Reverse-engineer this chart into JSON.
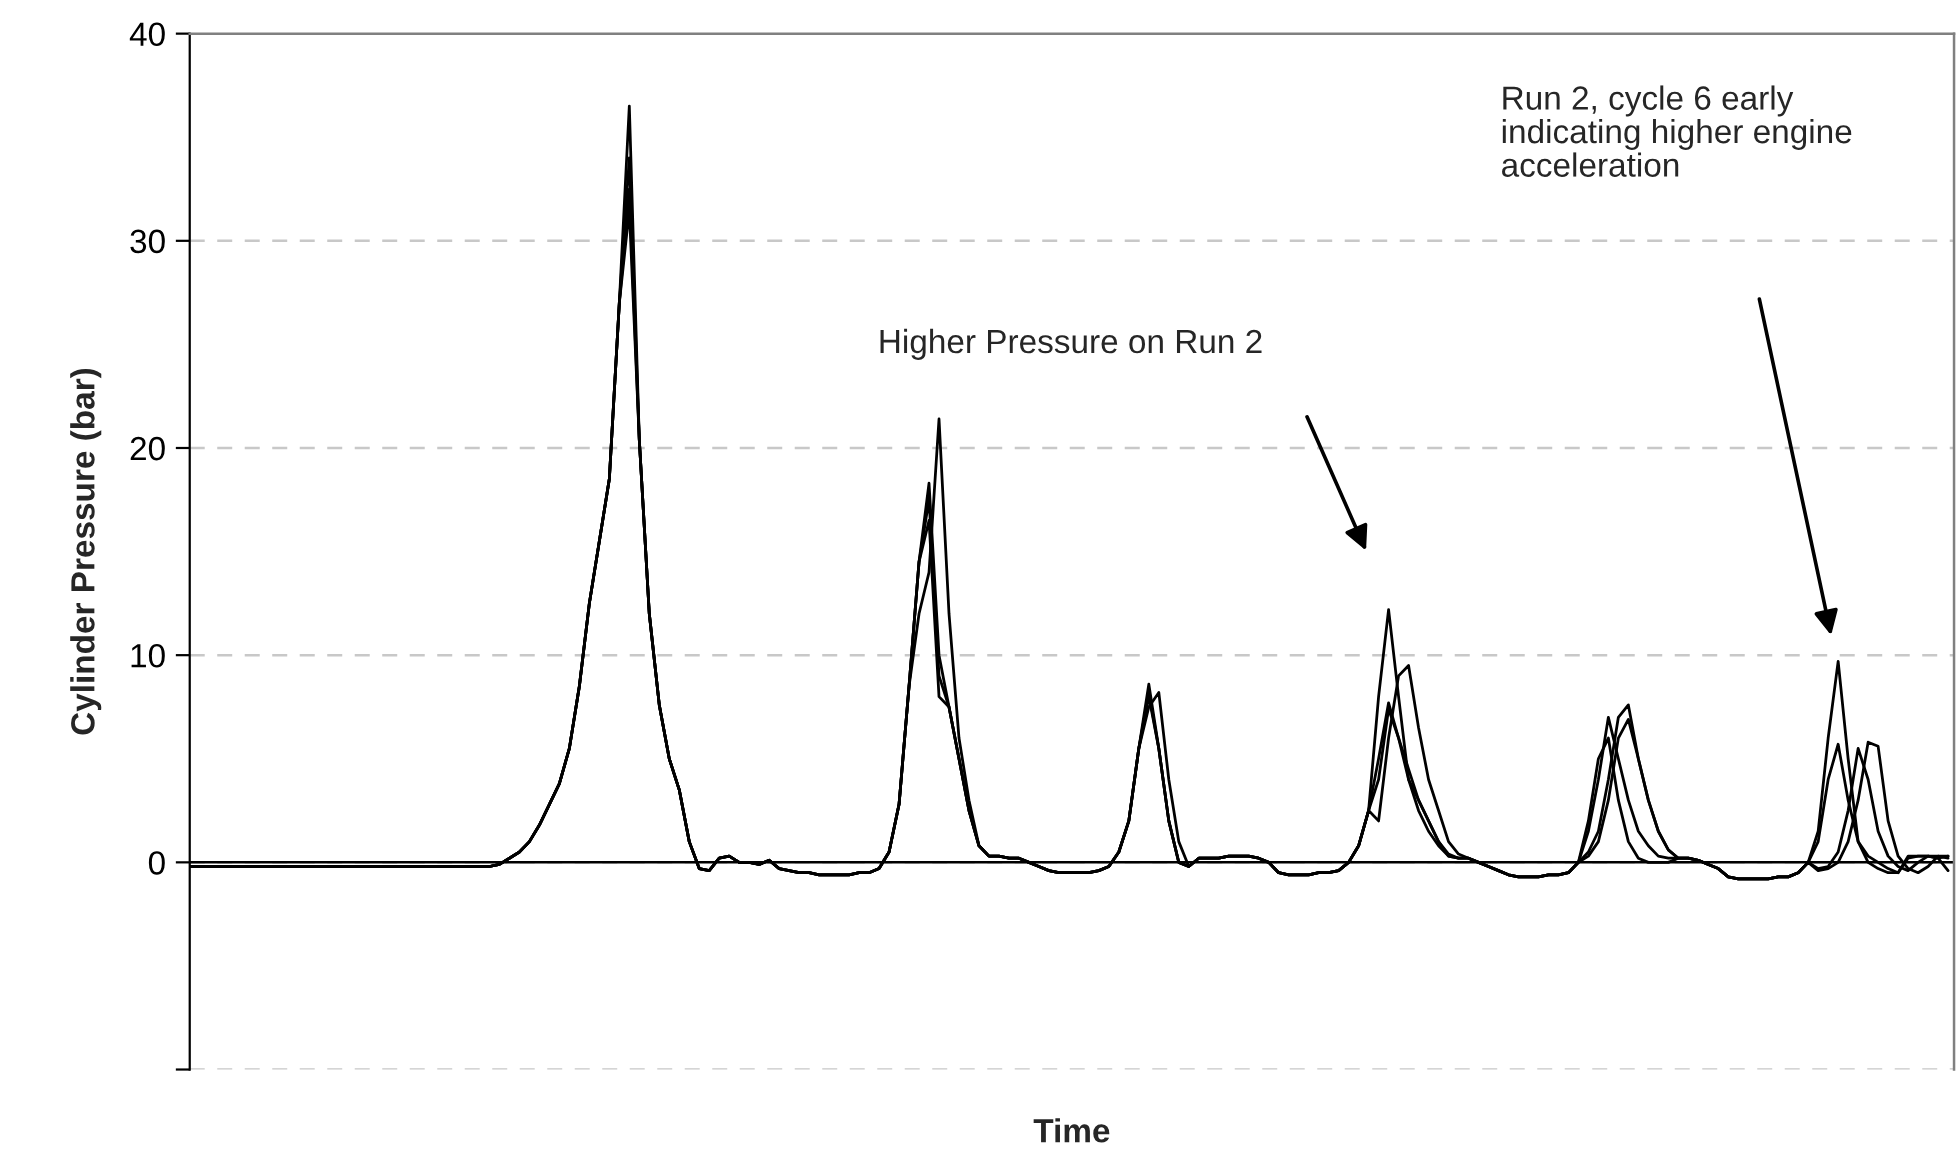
{
  "chart_data": {
    "type": "line",
    "xlabel": "Time",
    "ylabel": "Cylinder Pressure (bar)",
    "categories": [
      null,
      null,
      null,
      null,
      null,
      null,
      null,
      null,
      null,
      null,
      null,
      null,
      null,
      null,
      null,
      null,
      null,
      null,
      null,
      null,
      null,
      null,
      null,
      null,
      null,
      null,
      null,
      null,
      null,
      null,
      null,
      null,
      null,
      null,
      null,
      null,
      null,
      null,
      null,
      null,
      null,
      null,
      null,
      null,
      null,
      null,
      null,
      null,
      null,
      null,
      null,
      null,
      null,
      null,
      null,
      null,
      null,
      null,
      null,
      null,
      null,
      null,
      null,
      null,
      null,
      null,
      null,
      null,
      null,
      null,
      null,
      null,
      null,
      null,
      null,
      null,
      null,
      null,
      null,
      null,
      null,
      null,
      null,
      null,
      null,
      null,
      null,
      null,
      null,
      null,
      null,
      null,
      null,
      null,
      null,
      null,
      null,
      null,
      null,
      null,
      null,
      null,
      null,
      null,
      null,
      null,
      null,
      null,
      null,
      null,
      null,
      null,
      null,
      null,
      null,
      null,
      null,
      null,
      null,
      null,
      null,
      null,
      null,
      null,
      null,
      null,
      null,
      null,
      null,
      null,
      null,
      null,
      null,
      null,
      null,
      null,
      null,
      null,
      null,
      null,
      null,
      null,
      null,
      null,
      null,
      null,
      null,
      null,
      null,
      null,
      null,
      null,
      null,
      null,
      null,
      null,
      null,
      null,
      null,
      null,
      null,
      null,
      null,
      null,
      null,
      null,
      null,
      null,
      null,
      null,
      null,
      null,
      null,
      null,
      null,
      null,
      null
    ],
    "series": [
      {
        "color": "#000000",
        "values": [
          -0.2,
          -0.2,
          -0.2,
          -0.2,
          -0.2,
          -0.2,
          -0.2,
          -0.2,
          -0.2,
          -0.2,
          -0.2,
          -0.2,
          -0.2,
          -0.2,
          -0.2,
          -0.2,
          -0.2,
          -0.2,
          -0.2,
          -0.2,
          -0.2,
          -0.2,
          -0.2,
          -0.2,
          -0.2,
          -0.2,
          -0.2,
          -0.2,
          -0.2,
          -0.2,
          -0.2,
          -0.1,
          0.2,
          0.5,
          1.0,
          1.8,
          2.8,
          3.8,
          5.5,
          8.5,
          12.5,
          15.5,
          18.5,
          27,
          36.5,
          20.4,
          12,
          7.6,
          5.0,
          3.5,
          1.0,
          -0.3,
          -0.4,
          0.2,
          0.3,
          0.0,
          0.0,
          -0.1,
          0.1,
          -0.3,
          -0.4,
          -0.5,
          -0.5,
          -0.6,
          -0.6,
          -0.6,
          -0.6,
          -0.5,
          -0.5,
          -0.3,
          0.5,
          2.8,
          8.5,
          14.5,
          18.3,
          10,
          7.5,
          5.0,
          2.5,
          0.8,
          0.3,
          0.3,
          0.2,
          0.2,
          0.0,
          -0.2,
          -0.4,
          -0.5,
          -0.5,
          -0.5,
          -0.5,
          -0.4,
          -0.2,
          0.5,
          2.0,
          5.5,
          8.6,
          5.5,
          2.0,
          0.0,
          -0.2,
          0.2,
          0.2,
          0.2,
          0.3,
          0.3,
          0.3,
          0.2,
          0.0,
          -0.5,
          -0.6,
          -0.6,
          -0.6,
          -0.5,
          -0.5,
          -0.4,
          0.0,
          0.8,
          2.5,
          5,
          7.7,
          6,
          4,
          3,
          2,
          1,
          0.3,
          0.2,
          0.2,
          0.0,
          -0.2,
          -0.4,
          -0.6,
          -0.7,
          -0.7,
          -0.7,
          -0.6,
          -0.6,
          -0.5,
          0.0,
          2,
          5.0,
          6.0,
          3,
          1,
          0.2,
          0,
          0,
          0,
          0.2,
          0.2,
          0.1,
          -0.1,
          -0.3,
          -0.7,
          -0.8,
          -0.8,
          -0.8,
          -0.8,
          -0.7,
          -0.7,
          -0.5,
          0.0,
          1.0,
          4,
          5.7,
          3,
          1,
          0.3,
          0,
          -0.3,
          -0.5,
          0.3,
          0.3,
          0.3,
          0.2,
          0.3
        ]
      },
      {
        "color": "#000000",
        "values": [
          -0.2,
          -0.2,
          -0.2,
          -0.2,
          -0.2,
          -0.2,
          -0.2,
          -0.2,
          -0.2,
          -0.2,
          -0.2,
          -0.2,
          -0.2,
          -0.2,
          -0.2,
          -0.2,
          -0.2,
          -0.2,
          -0.2,
          -0.2,
          -0.2,
          -0.2,
          -0.2,
          -0.2,
          -0.2,
          -0.2,
          -0.2,
          -0.2,
          -0.2,
          -0.2,
          -0.2,
          -0.1,
          0.2,
          0.5,
          1.0,
          1.8,
          2.8,
          3.8,
          5.5,
          8.5,
          12.5,
          15.5,
          18.5,
          27,
          34,
          20.4,
          12,
          7.6,
          5.0,
          3.5,
          1.0,
          -0.3,
          -0.4,
          0.2,
          0.3,
          0.0,
          0.0,
          -0.1,
          0.1,
          -0.3,
          -0.4,
          -0.5,
          -0.5,
          -0.6,
          -0.6,
          -0.6,
          -0.6,
          -0.5,
          -0.5,
          -0.3,
          0.5,
          2.8,
          8.5,
          14.5,
          17.5,
          9,
          7.5,
          5,
          2.5,
          0.8,
          0.3,
          0.3,
          0.2,
          0.2,
          0.0,
          -0.2,
          -0.4,
          -0.5,
          -0.5,
          -0.5,
          -0.5,
          -0.4,
          -0.2,
          0.5,
          2.0,
          5.5,
          8.2,
          5.5,
          2.0,
          0.0,
          -0.2,
          0.2,
          0.2,
          0.2,
          0.3,
          0.3,
          0.3,
          0.2,
          0.0,
          -0.5,
          -0.6,
          -0.6,
          -0.6,
          -0.5,
          -0.5,
          -0.4,
          0.0,
          0.8,
          2.5,
          4,
          7.4,
          6,
          4.5,
          3,
          2,
          1,
          0.4,
          0.2,
          0.2,
          0.0,
          -0.2,
          -0.4,
          -0.6,
          -0.7,
          -0.7,
          -0.7,
          -0.6,
          -0.6,
          -0.5,
          0.0,
          1.5,
          4.0,
          7.0,
          5,
          3,
          1.5,
          0.8,
          0.3,
          0.2,
          0.2,
          0.2,
          0.1,
          -0.1,
          -0.3,
          -0.7,
          -0.8,
          -0.8,
          -0.8,
          -0.8,
          -0.7,
          -0.7,
          -0.5,
          0.0,
          -0.3,
          -0.2,
          0.5,
          2.5,
          5.5,
          4,
          1.5,
          0.3,
          -0.2,
          -0.4,
          0,
          0.3,
          0.3,
          0.2
        ]
      },
      {
        "color": "#000000",
        "values": [
          -0.2,
          -0.2,
          -0.2,
          -0.2,
          -0.2,
          -0.2,
          -0.2,
          -0.2,
          -0.2,
          -0.2,
          -0.2,
          -0.2,
          -0.2,
          -0.2,
          -0.2,
          -0.2,
          -0.2,
          -0.2,
          -0.2,
          -0.2,
          -0.2,
          -0.2,
          -0.2,
          -0.2,
          -0.2,
          -0.2,
          -0.2,
          -0.2,
          -0.2,
          -0.2,
          -0.2,
          -0.1,
          0.2,
          0.5,
          1.0,
          1.8,
          2.8,
          3.8,
          5.5,
          8.5,
          12.5,
          15.5,
          18.5,
          27,
          32.5,
          20.4,
          12,
          7.6,
          5.0,
          3.5,
          1.0,
          -0.3,
          -0.4,
          0.2,
          0.3,
          0.0,
          0.0,
          -0.1,
          0.1,
          -0.3,
          -0.4,
          -0.5,
          -0.5,
          -0.6,
          -0.6,
          -0.6,
          -0.6,
          -0.5,
          -0.5,
          -0.3,
          0.5,
          2.8,
          8.5,
          14.5,
          16.5,
          8,
          7.5,
          5,
          2.5,
          0.8,
          0.3,
          0.3,
          0.2,
          0.2,
          0.0,
          -0.2,
          -0.4,
          -0.5,
          -0.5,
          -0.5,
          -0.5,
          -0.4,
          -0.2,
          0.5,
          2.0,
          5.5,
          7.5,
          8.2,
          4,
          1,
          -0.2,
          0.2,
          0.2,
          0.2,
          0.3,
          0.3,
          0.3,
          0.2,
          0.0,
          -0.5,
          -0.6,
          -0.6,
          -0.6,
          -0.5,
          -0.5,
          -0.4,
          0.0,
          0.8,
          2.5,
          2,
          6,
          9,
          9.5,
          6.5,
          4,
          2.5,
          1,
          0.4,
          0.2,
          0.0,
          -0.2,
          -0.4,
          -0.6,
          -0.7,
          -0.7,
          -0.7,
          -0.6,
          -0.6,
          -0.5,
          0.0,
          0.5,
          1.5,
          4,
          7.0,
          7.6,
          5,
          3,
          1.5,
          0.6,
          0.2,
          0.2,
          0.1,
          -0.1,
          -0.3,
          -0.7,
          -0.8,
          -0.8,
          -0.8,
          -0.8,
          -0.7,
          -0.7,
          -0.5,
          0.0,
          -0.4,
          -0.3,
          0.0,
          1.0,
          3,
          5.8,
          5.6,
          2,
          0.3,
          -0.3,
          -0.5,
          -0.2,
          0.3,
          0.3
        ]
      },
      {
        "color": "#000000",
        "values": [
          -0.2,
          -0.2,
          -0.2,
          -0.2,
          -0.2,
          -0.2,
          -0.2,
          -0.2,
          -0.2,
          -0.2,
          -0.2,
          -0.2,
          -0.2,
          -0.2,
          -0.2,
          -0.2,
          -0.2,
          -0.2,
          -0.2,
          -0.2,
          -0.2,
          -0.2,
          -0.2,
          -0.2,
          -0.2,
          -0.2,
          -0.2,
          -0.2,
          -0.2,
          -0.2,
          -0.2,
          -0.1,
          0.2,
          0.5,
          1.0,
          1.8,
          2.8,
          3.8,
          5.5,
          8.5,
          12.5,
          15.5,
          18.5,
          27,
          31.5,
          20.4,
          12,
          7.6,
          5.0,
          3.5,
          1.0,
          -0.3,
          -0.4,
          0.2,
          0.3,
          0.0,
          0.0,
          -0.1,
          0.1,
          -0.3,
          -0.4,
          -0.5,
          -0.5,
          -0.6,
          -0.6,
          -0.6,
          -0.6,
          -0.5,
          -0.5,
          -0.3,
          0.5,
          2.8,
          8.5,
          12,
          14,
          21.4,
          12,
          6,
          3,
          0.8,
          0.3,
          0.3,
          0.2,
          0.2,
          0.0,
          -0.2,
          -0.4,
          -0.5,
          -0.5,
          -0.5,
          -0.5,
          -0.4,
          -0.2,
          0.5,
          2.0,
          5.5,
          8.0,
          5.5,
          2,
          0,
          -0.2,
          0.2,
          0.2,
          0.2,
          0.3,
          0.3,
          0.3,
          0.2,
          0.0,
          -0.5,
          -0.6,
          -0.6,
          -0.6,
          -0.5,
          -0.5,
          -0.4,
          0.0,
          0.8,
          2.5,
          8,
          12.2,
          8,
          4,
          2.5,
          1.5,
          0.8,
          0.3,
          0.2,
          0.2,
          0.0,
          -0.2,
          -0.4,
          -0.6,
          -0.7,
          -0.7,
          -0.7,
          -0.6,
          -0.6,
          -0.5,
          0.0,
          0.3,
          1.0,
          3,
          6,
          6.9,
          5,
          3,
          1.5,
          0.6,
          0.2,
          0.2,
          0.1,
          -0.1,
          -0.3,
          -0.7,
          -0.8,
          -0.8,
          -0.8,
          -0.8,
          -0.7,
          -0.7,
          -0.5,
          0.0,
          1.5,
          6,
          9.7,
          5,
          1,
          0,
          -0.3,
          -0.5,
          -0.5,
          0.2,
          0.3,
          0.3,
          0.2,
          -0.4
        ]
      }
    ],
    "ylim": [
      -10,
      40
    ],
    "yticks": [
      {
        "value": -10,
        "label": null
      },
      0,
      10,
      20,
      30,
      40
    ],
    "grid": "y",
    "ref_lines": [
      {
        "axis": "y",
        "value": 0,
        "color": "#000000"
      }
    ],
    "annotations": [
      "Higher Pressure on Run 2",
      "Run 2, cycle 6 early\nindicating higher engine\nacceleration"
    ]
  }
}
